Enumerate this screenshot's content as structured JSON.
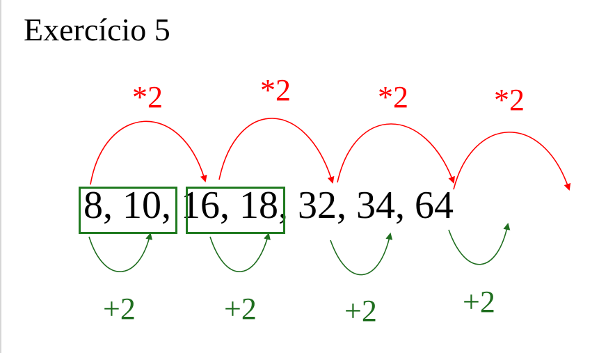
{
  "slide": {
    "title": "Exercício 5",
    "sequence": "8, 10, 16, 18, 32, 34, 64",
    "multiply_labels": [
      "*2",
      "*2",
      "*2",
      "*2"
    ],
    "add_labels": [
      "+2",
      "+2",
      "+2",
      "+2"
    ]
  },
  "colors": {
    "multiply": "#ff0000",
    "add": "#1f6e1f",
    "box": "#1f7a1f"
  }
}
